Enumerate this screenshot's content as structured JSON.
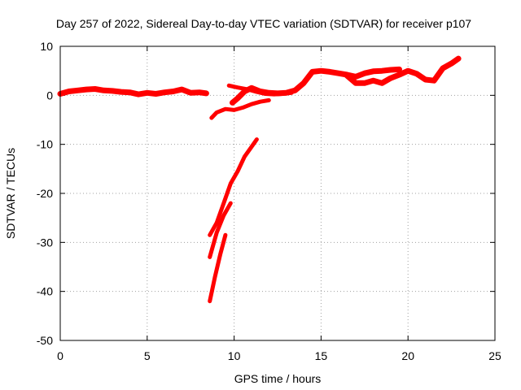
{
  "chart_data": {
    "type": "line",
    "title": "Day 257 of 2022, Sidereal Day-to-day VTEC variation (SDTVAR) for receiver p107",
    "xlabel": "GPS time / hours",
    "ylabel": "SDTVAR / TECUs",
    "xlim": [
      0,
      25
    ],
    "ylim": [
      -50,
      10
    ],
    "xticks": [
      0,
      5,
      10,
      15,
      20,
      25
    ],
    "yticks": [
      -50,
      -40,
      -30,
      -20,
      -10,
      0,
      10
    ],
    "grid": true,
    "legend": "none",
    "series_color": "#ff0000",
    "series": [
      {
        "x": [
          0.0,
          0.5,
          1.0,
          1.5,
          2.0,
          2.5,
          3.0,
          3.5,
          4.0,
          4.5,
          5.0,
          5.5,
          6.0,
          6.5,
          7.0,
          7.5,
          8.0,
          8.4
        ],
        "y": [
          0.3,
          0.8,
          1.0,
          1.2,
          1.3,
          1.0,
          0.9,
          0.7,
          0.6,
          0.2,
          0.5,
          0.3,
          0.6,
          0.8,
          1.2,
          0.5,
          0.6,
          0.4
        ]
      },
      {
        "x": [
          8.7,
          9.0,
          9.5,
          10.0,
          10.5,
          11.0,
          11.5,
          12.0
        ],
        "y": [
          -4.6,
          -3.5,
          -2.8,
          -3.0,
          -2.5,
          -1.8,
          -1.3,
          -1.0
        ]
      },
      {
        "x": [
          9.9,
          10.2,
          10.6,
          11.0,
          11.5,
          12.0,
          12.5,
          13.0,
          13.5,
          14.0,
          14.5,
          15.0,
          15.5,
          16.0,
          16.5,
          17.0,
          17.5,
          18.0,
          18.5,
          19.0,
          19.5
        ],
        "y": [
          -1.5,
          -0.6,
          0.8,
          1.5,
          0.8,
          0.5,
          0.4,
          0.5,
          1.0,
          2.5,
          4.8,
          5.0,
          4.8,
          4.5,
          4.2,
          3.8,
          4.5,
          4.9,
          5.0,
          5.2,
          5.3
        ]
      },
      {
        "x": [
          9.7,
          10.2,
          10.8,
          11.3,
          11.8,
          12.3,
          12.8,
          13.3
        ],
        "y": [
          2.0,
          1.6,
          1.2,
          0.7,
          0.3,
          0.2,
          0.3,
          0.5
        ]
      },
      {
        "x": [
          16.5,
          17.0,
          17.5,
          18.0,
          18.5,
          19.0,
          19.5,
          20.0,
          20.5,
          21.0,
          21.5,
          22.0,
          22.5,
          22.9
        ],
        "y": [
          4.0,
          2.5,
          2.5,
          3.0,
          2.5,
          3.5,
          4.2,
          5.0,
          4.4,
          3.2,
          3.0,
          5.5,
          6.5,
          7.5
        ]
      },
      {
        "x": [
          8.6,
          9.0,
          9.4,
          9.8,
          10.2,
          10.6,
          11.0,
          11.3
        ],
        "y": [
          -28.5,
          -26.0,
          -22.0,
          -18.0,
          -15.5,
          -12.5,
          -10.5,
          -9.0
        ]
      },
      {
        "x": [
          8.6,
          9.0,
          9.4,
          9.8
        ],
        "y": [
          -33.0,
          -28.0,
          -24.5,
          -22.0
        ]
      },
      {
        "x": [
          8.6,
          8.9,
          9.2,
          9.5
        ],
        "y": [
          -42.0,
          -37.0,
          -32.5,
          -28.5
        ]
      }
    ]
  }
}
